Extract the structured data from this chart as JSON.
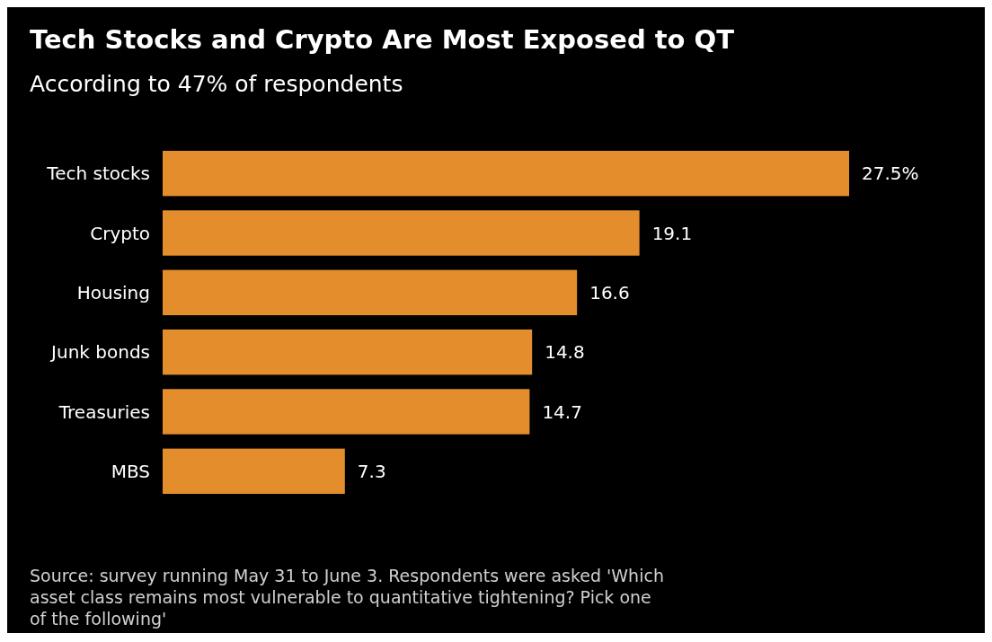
{
  "chart_data": {
    "type": "bar",
    "orientation": "horizontal",
    "title": "Tech Stocks and Crypto Are Most Exposed to QT",
    "subtitle": "According to 47% of respondents",
    "categories": [
      "Tech stocks",
      "Crypto",
      "Housing",
      "Junk bonds",
      "Treasuries",
      "MBS"
    ],
    "values": [
      27.5,
      19.1,
      16.6,
      14.8,
      14.7,
      7.3
    ],
    "value_labels": [
      "27.5%",
      "19.1",
      "16.6",
      "14.8",
      "14.7",
      "7.3"
    ],
    "color": "#e38d2c",
    "annotations": [
      "Source: survey running May 31 to June 3. Respondents were asked 'Which asset class remains most vulnerable to quantitative tightening? Pick one of the following'"
    ]
  }
}
